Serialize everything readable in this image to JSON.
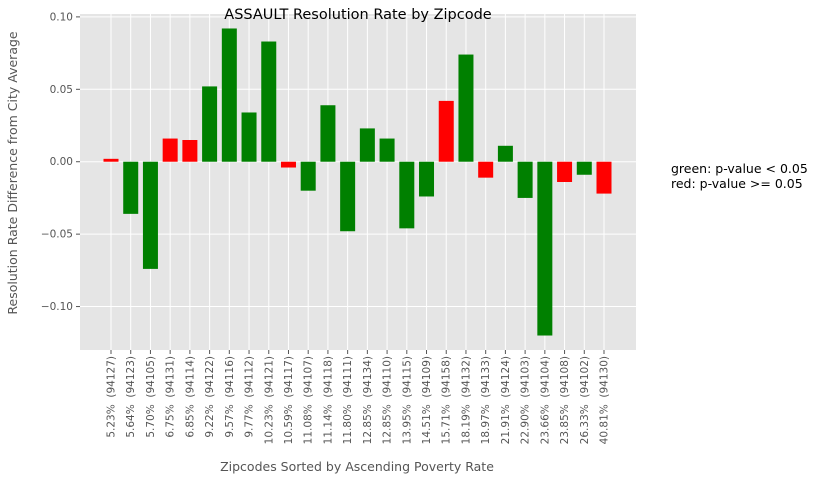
{
  "chart_data": {
    "type": "bar",
    "title": "ASSAULT Resolution Rate by Zipcode",
    "xlabel": "Zipcodes Sorted by Ascending Poverty Rate",
    "ylabel": "Resolution Rate Difference from City Average",
    "ylim": [
      -0.13,
      0.102
    ],
    "yticks": [
      0.1,
      0.05,
      0.0,
      -0.05,
      -0.1
    ],
    "ytick_labels": [
      "0.10",
      "0.05",
      "0.00",
      "−0.05",
      "−0.10"
    ],
    "grid": true,
    "legend_position": "right",
    "annotation_lines": [
      "green: p-value < 0.05",
      "red: p-value >= 0.05"
    ],
    "colors": {
      "significant": "#008000",
      "not_significant": "#ff0000",
      "plot_background": "#e5e5e5",
      "grid": "#ffffff"
    },
    "categories": [
      "5.23%  (94127)",
      "5.64%  (94123)",
      "5.70%  (94105)",
      "6.75%  (94131)",
      "6.85%  (94114)",
      "9.22%  (94122)",
      "9.57%  (94116)",
      "9.77%  (94112)",
      "10.23%  (94121)",
      "10.59%  (94117)",
      "11.08%  (94107)",
      "11.14%  (94118)",
      "11.80%  (94111)",
      "12.85%  (94134)",
      "12.85%  (94110)",
      "13.95%  (94115)",
      "14.51%  (94109)",
      "15.71%  (94158)",
      "18.19%  (94132)",
      "18.97%  (94133)",
      "21.91%  (94124)",
      "22.90%  (94103)",
      "23.66%  (94104)",
      "23.85%  (94108)",
      "26.33%  (94102)",
      "40.81%  (94130)"
    ],
    "values": [
      0.002,
      -0.036,
      -0.074,
      0.016,
      0.015,
      0.052,
      0.092,
      0.034,
      0.083,
      -0.004,
      -0.02,
      0.039,
      -0.048,
      0.023,
      0.016,
      -0.046,
      -0.024,
      0.042,
      0.074,
      -0.011,
      0.011,
      -0.025,
      -0.12,
      -0.014,
      -0.009,
      -0.022
    ],
    "significant": [
      false,
      true,
      true,
      false,
      false,
      true,
      true,
      true,
      true,
      false,
      true,
      true,
      true,
      true,
      true,
      true,
      true,
      false,
      true,
      false,
      true,
      true,
      true,
      false,
      true,
      false
    ]
  }
}
